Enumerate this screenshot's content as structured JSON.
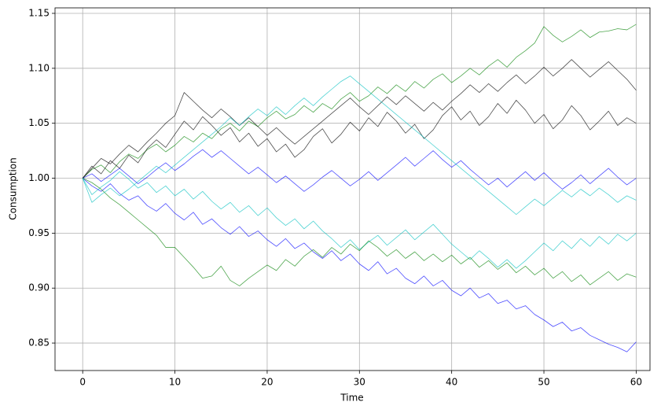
{
  "chart_data": {
    "type": "line",
    "xlabel": "Time",
    "ylabel": "Consumption",
    "x": [
      0,
      1,
      2,
      3,
      4,
      5,
      6,
      7,
      8,
      9,
      10,
      11,
      12,
      13,
      14,
      15,
      16,
      17,
      18,
      19,
      20,
      21,
      22,
      23,
      24,
      25,
      26,
      27,
      28,
      29,
      30,
      31,
      32,
      33,
      34,
      35,
      36,
      37,
      38,
      39,
      40,
      41,
      42,
      43,
      44,
      45,
      46,
      47,
      48,
      49,
      50,
      51,
      52,
      53,
      54,
      55,
      56,
      57,
      58,
      59,
      60
    ],
    "xlim": [
      -3,
      61.5
    ],
    "xticks": [
      0,
      10,
      20,
      30,
      40,
      50,
      60
    ],
    "ylim": [
      0.825,
      1.155
    ],
    "yticks": [
      0.85,
      {
        "value": 0.9,
        "label": "0.90"
      },
      0.95,
      {
        "value": 1.0,
        "label": "1.00"
      },
      1.05,
      {
        "value": 1.1,
        "label": "1.10"
      },
      1.15
    ],
    "grid": true,
    "series": [
      {
        "color": "#008000",
        "values": [
          1,
          1.008,
          1.012,
          1.005,
          1.015,
          1.022,
          1.018,
          1.026,
          1.031,
          1.024,
          1.03,
          1.038,
          1.033,
          1.041,
          1.036,
          1.045,
          1.05,
          1.043,
          1.052,
          1.047,
          1.055,
          1.061,
          1.054,
          1.058,
          1.066,
          1.06,
          1.068,
          1.063,
          1.072,
          1.078,
          1.07,
          1.075,
          1.083,
          1.077,
          1.085,
          1.079,
          1.088,
          1.082,
          1.09,
          1.095,
          1.087,
          1.093,
          1.1,
          1.094,
          1.102,
          1.108,
          1.101,
          1.11,
          1.116,
          1.123,
          1.138,
          1.13,
          1.124,
          1.129,
          1.135,
          1.128,
          1.133,
          1.134,
          1.136,
          1.135,
          1.14
        ]
      },
      {
        "color": "#0000ff",
        "values": [
          1,
          0.993,
          0.988,
          0.995,
          0.986,
          0.98,
          0.984,
          0.975,
          0.97,
          0.977,
          0.968,
          0.962,
          0.969,
          0.958,
          0.963,
          0.955,
          0.949,
          0.956,
          0.947,
          0.952,
          0.944,
          0.938,
          0.945,
          0.936,
          0.941,
          0.933,
          0.927,
          0.934,
          0.925,
          0.931,
          0.922,
          0.916,
          0.924,
          0.913,
          0.918,
          0.909,
          0.904,
          0.911,
          0.902,
          0.907,
          0.898,
          0.893,
          0.9,
          0.891,
          0.895,
          0.886,
          0.889,
          0.881,
          0.884,
          0.876,
          0.871,
          0.865,
          0.869,
          0.861,
          0.864,
          0.857,
          0.853,
          0.849,
          0.846,
          0.842,
          0.851
        ]
      },
      {
        "color": "#000000",
        "values": [
          1,
          1.011,
          1.004,
          1.016,
          1.009,
          1.021,
          1.014,
          1.027,
          1.035,
          1.028,
          1.04,
          1.052,
          1.044,
          1.056,
          1.048,
          1.039,
          1.046,
          1.033,
          1.041,
          1.029,
          1.036,
          1.024,
          1.031,
          1.019,
          1.026,
          1.038,
          1.045,
          1.032,
          1.04,
          1.051,
          1.043,
          1.055,
          1.047,
          1.06,
          1.052,
          1.041,
          1.049,
          1.036,
          1.044,
          1.057,
          1.065,
          1.053,
          1.061,
          1.048,
          1.056,
          1.068,
          1.059,
          1.071,
          1.062,
          1.05,
          1.058,
          1.045,
          1.053,
          1.066,
          1.057,
          1.044,
          1.052,
          1.061,
          1.048,
          1.055,
          1.05
        ]
      },
      {
        "color": "#00bfbf",
        "values": [
          1,
          0.985,
          0.992,
          0.998,
          1.006,
          0.999,
          0.991,
          0.996,
          0.987,
          0.993,
          0.984,
          0.99,
          0.981,
          0.988,
          0.979,
          0.972,
          0.978,
          0.969,
          0.975,
          0.966,
          0.973,
          0.964,
          0.957,
          0.963,
          0.954,
          0.961,
          0.952,
          0.945,
          0.937,
          0.944,
          0.935,
          0.942,
          0.948,
          0.939,
          0.946,
          0.953,
          0.944,
          0.951,
          0.958,
          0.949,
          0.94,
          0.933,
          0.926,
          0.934,
          0.927,
          0.919,
          0.926,
          0.918,
          0.925,
          0.933,
          0.941,
          0.934,
          0.943,
          0.936,
          0.945,
          0.938,
          0.947,
          0.94,
          0.949,
          0.943,
          0.95
        ]
      },
      {
        "color": "#0000ff",
        "values": [
          1,
          1.004,
          0.997,
          1.003,
          1.009,
          1.002,
          0.995,
          1.001,
          1.008,
          1.014,
          1.007,
          1.013,
          1.02,
          1.026,
          1.019,
          1.025,
          1.018,
          1.011,
          1.004,
          1.01,
          1.003,
          0.996,
          1.002,
          0.995,
          0.988,
          0.994,
          1.001,
          1.007,
          1.0,
          0.993,
          0.999,
          1.006,
          0.998,
          1.005,
          1.012,
          1.019,
          1.011,
          1.018,
          1.025,
          1.017,
          1.01,
          1.016,
          1.008,
          1.001,
          0.994,
          1.0,
          0.992,
          0.999,
          1.006,
          0.998,
          1.005,
          0.997,
          0.99,
          0.996,
          1.003,
          0.995,
          1.002,
          1.009,
          1.001,
          0.994,
          1.0
        ]
      },
      {
        "color": "#008000",
        "values": [
          1,
          0.996,
          0.99,
          0.982,
          0.976,
          0.969,
          0.962,
          0.955,
          0.948,
          0.937,
          0.937,
          0.928,
          0.919,
          0.909,
          0.911,
          0.92,
          0.907,
          0.902,
          0.909,
          0.915,
          0.921,
          0.916,
          0.926,
          0.92,
          0.929,
          0.935,
          0.928,
          0.937,
          0.931,
          0.94,
          0.934,
          0.943,
          0.937,
          0.929,
          0.935,
          0.927,
          0.933,
          0.925,
          0.931,
          0.924,
          0.93,
          0.922,
          0.928,
          0.919,
          0.925,
          0.917,
          0.923,
          0.914,
          0.92,
          0.912,
          0.918,
          0.909,
          0.915,
          0.906,
          0.912,
          0.903,
          0.909,
          0.915,
          0.907,
          0.913,
          0.91
        ]
      },
      {
        "color": "#000000",
        "values": [
          1,
          1.009,
          1.018,
          1.013,
          1.022,
          1.03,
          1.024,
          1.033,
          1.041,
          1.05,
          1.057,
          1.078,
          1.07,
          1.062,
          1.055,
          1.063,
          1.056,
          1.048,
          1.055,
          1.047,
          1.039,
          1.046,
          1.038,
          1.031,
          1.038,
          1.045,
          1.052,
          1.059,
          1.066,
          1.073,
          1.065,
          1.058,
          1.066,
          1.074,
          1.067,
          1.075,
          1.068,
          1.061,
          1.069,
          1.062,
          1.07,
          1.077,
          1.085,
          1.078,
          1.086,
          1.079,
          1.087,
          1.094,
          1.086,
          1.093,
          1.101,
          1.093,
          1.1,
          1.108,
          1.1,
          1.092,
          1.099,
          1.106,
          1.098,
          1.09,
          1.08
        ]
      },
      {
        "color": "#00bfbf",
        "values": [
          1,
          0.978,
          0.985,
          0.991,
          0.984,
          0.99,
          0.997,
          1.004,
          1.011,
          1.005,
          1.012,
          1.019,
          1.026,
          1.033,
          1.04,
          1.047,
          1.055,
          1.048,
          1.056,
          1.063,
          1.057,
          1.065,
          1.058,
          1.066,
          1.073,
          1.066,
          1.074,
          1.081,
          1.088,
          1.093,
          1.086,
          1.079,
          1.072,
          1.065,
          1.058,
          1.051,
          1.044,
          1.037,
          1.03,
          1.023,
          1.016,
          1.009,
          1.002,
          0.995,
          0.988,
          0.981,
          0.974,
          0.967,
          0.974,
          0.981,
          0.975,
          0.982,
          0.989,
          0.983,
          0.99,
          0.984,
          0.991,
          0.985,
          0.978,
          0.984,
          0.98
        ]
      }
    ]
  }
}
